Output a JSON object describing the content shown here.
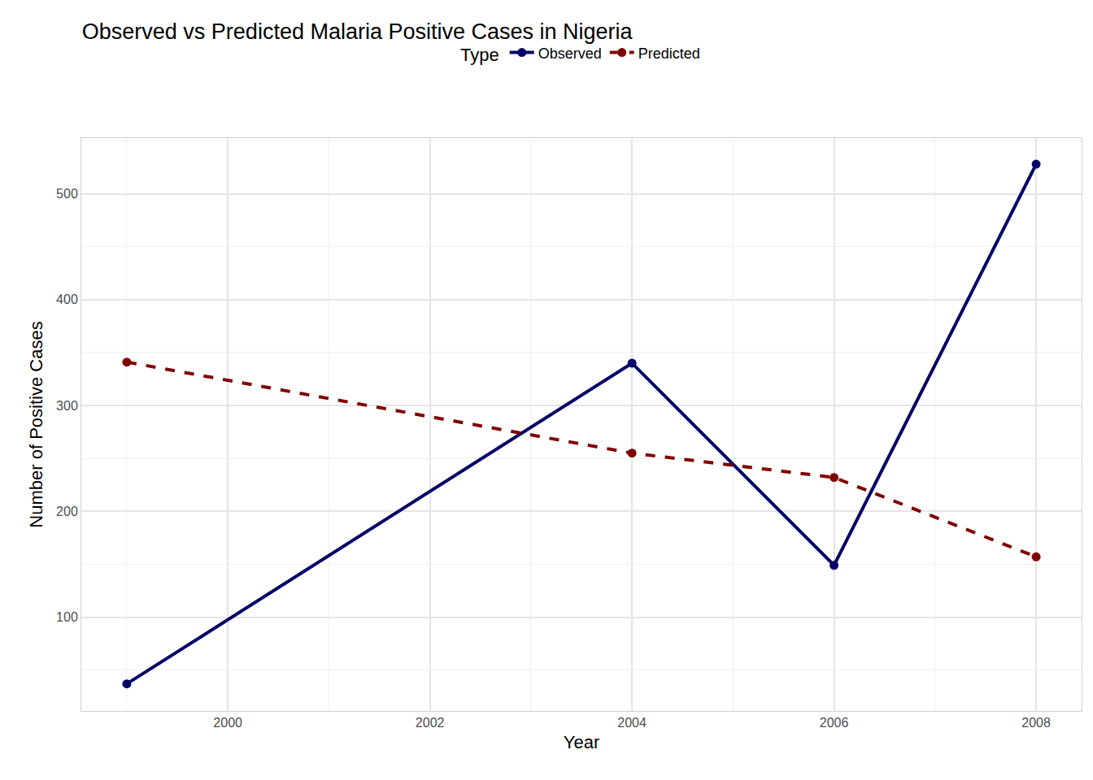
{
  "chart_data": {
    "type": "line",
    "title": "Observed vs Predicted Malaria Positive Cases in Nigeria",
    "x_label": "Year",
    "y_label": "Number of Positive Cases",
    "legend_title": "Type",
    "legend": "top",
    "grid": true,
    "x": [
      1999,
      2004,
      2006,
      2008
    ],
    "series": [
      {
        "name": "Observed",
        "color": "#000066",
        "line_style": "solid",
        "marker": "circle",
        "values": [
          37,
          340,
          149,
          528
        ]
      },
      {
        "name": "Predicted",
        "color": "#800000",
        "line_style": "dash",
        "marker": "circle",
        "values": [
          341,
          255,
          232,
          157
        ]
      }
    ],
    "xlim": [
      1998.55,
      2008.45
    ],
    "xticks": [
      2000,
      2002,
      2004,
      2006,
      2008
    ],
    "ylim": [
      11.4,
      552.6
    ],
    "yticks": [
      100,
      200,
      300,
      400,
      500
    ]
  }
}
